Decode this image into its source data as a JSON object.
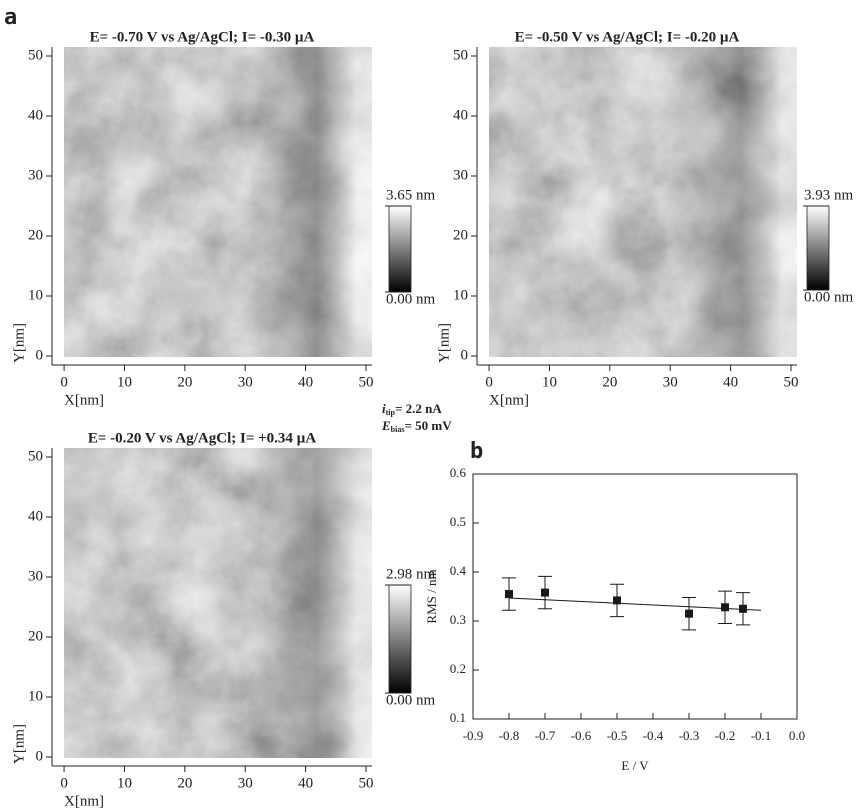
{
  "panel_labels": [
    "a",
    "b"
  ],
  "annotation": {
    "lines": [
      {
        "symbol": "i",
        "subscript": "tip",
        "text": "= 2.2 nA"
      },
      {
        "symbol": "E",
        "subscript": "bias",
        "text": "= 50 mV"
      }
    ]
  },
  "chart_data": [
    {
      "type": "image",
      "title": "E= -0.70 V vs Ag/AgCl; I= -0.30 µA",
      "xlabel": "X[nm]",
      "ylabel": "Y[nm]",
      "xlim": [
        -2,
        51
      ],
      "ylim": [
        -1.5,
        51.5
      ],
      "xticks": [
        0,
        10,
        20,
        30,
        40,
        50
      ],
      "yticks": [
        0,
        10,
        20,
        30,
        40,
        50
      ],
      "clim": [
        0,
        3.65
      ],
      "colorbar_ticks": [
        {
          "value": 3.65,
          "label": "3.65 nm"
        },
        {
          "value": 0,
          "label": "0.00 nm"
        }
      ]
    },
    {
      "type": "image",
      "title": "E= -0.50 V vs Ag/AgCl; I= -0.20 µA",
      "xlabel": "X[nm]",
      "ylabel": "Y[nm]",
      "xlim": [
        -2,
        51
      ],
      "ylim": [
        -1.5,
        51.5
      ],
      "xticks": [
        0,
        10,
        20,
        30,
        40,
        50
      ],
      "yticks": [
        0,
        10,
        20,
        30,
        40,
        50
      ],
      "clim": [
        0,
        3.93
      ],
      "colorbar_ticks": [
        {
          "value": 3.93,
          "label": "3.93 nm"
        },
        {
          "value": 0,
          "label": "0.00 nm"
        }
      ]
    },
    {
      "type": "image",
      "title": "E= -0.20 V vs Ag/AgCl; I= +0.34 µA",
      "xlabel": "X[nm]",
      "ylabel": "Y[nm]",
      "xlim": [
        -2,
        51
      ],
      "ylim": [
        -1.5,
        51.5
      ],
      "xticks": [
        0,
        10,
        20,
        30,
        40,
        50
      ],
      "yticks": [
        0,
        10,
        20,
        30,
        40,
        50
      ],
      "clim": [
        0,
        2.98
      ],
      "colorbar_ticks": [
        {
          "value": 2.98,
          "label": "2.98 nm"
        },
        {
          "value": 0,
          "label": "0.00 nm"
        }
      ]
    },
    {
      "type": "scatter",
      "xlabel": "E / V",
      "ylabel": "RMS / nm",
      "xlim": [
        -0.9,
        0
      ],
      "ylim": [
        0.1,
        0.6
      ],
      "xticks": [
        -0.9,
        -0.8,
        -0.7,
        -0.6,
        -0.5,
        -0.4,
        -0.3,
        -0.2,
        -0.1,
        {
          "value": 0,
          "label": "0.0"
        }
      ],
      "yticks": [
        0.1,
        0.2,
        0.3,
        0.4,
        0.5,
        0.6
      ],
      "x": [
        -0.8,
        -0.7,
        -0.5,
        -0.3,
        -0.2,
        -0.15
      ],
      "values": [
        0.355,
        0.358,
        0.342,
        0.315,
        0.328,
        0.325
      ],
      "errors": [
        0.033,
        0.033,
        0.033,
        0.033,
        0.033,
        0.033
      ],
      "fit": {
        "x": [
          -0.8,
          -0.1
        ],
        "values": [
          0.347,
          0.322
        ]
      },
      "color": "#1a1a1a"
    }
  ]
}
